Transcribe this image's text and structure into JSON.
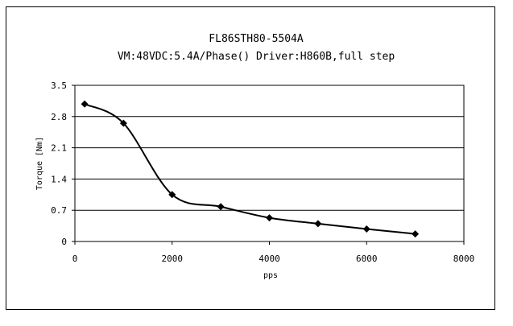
{
  "chart_data": {
    "type": "line",
    "title": "FL86STH80-5504A",
    "subtitle": "VM:48VDC:5.4A/Phase() Driver:H860B,full step",
    "xlabel": "pps",
    "ylabel": "Torque [Nm]",
    "xlim": [
      0,
      8000
    ],
    "ylim": [
      0,
      3.5
    ],
    "xticks": [
      "0",
      "2000",
      "4000",
      "6000",
      "8000"
    ],
    "yticks": [
      "0",
      "0.7",
      "1.4",
      "2.1",
      "2.8",
      "3.5"
    ],
    "grid": "horizontal",
    "legend": "none",
    "series": [
      {
        "x": [
          200,
          1000,
          2000,
          3000,
          4000,
          5000,
          6000,
          7000
        ],
        "y": [
          3.08,
          2.65,
          1.05,
          0.78,
          0.53,
          0.4,
          0.28,
          0.17
        ]
      }
    ],
    "colors": {
      "line": "#000000",
      "marker": "#000000",
      "grid": "#000000"
    }
  }
}
